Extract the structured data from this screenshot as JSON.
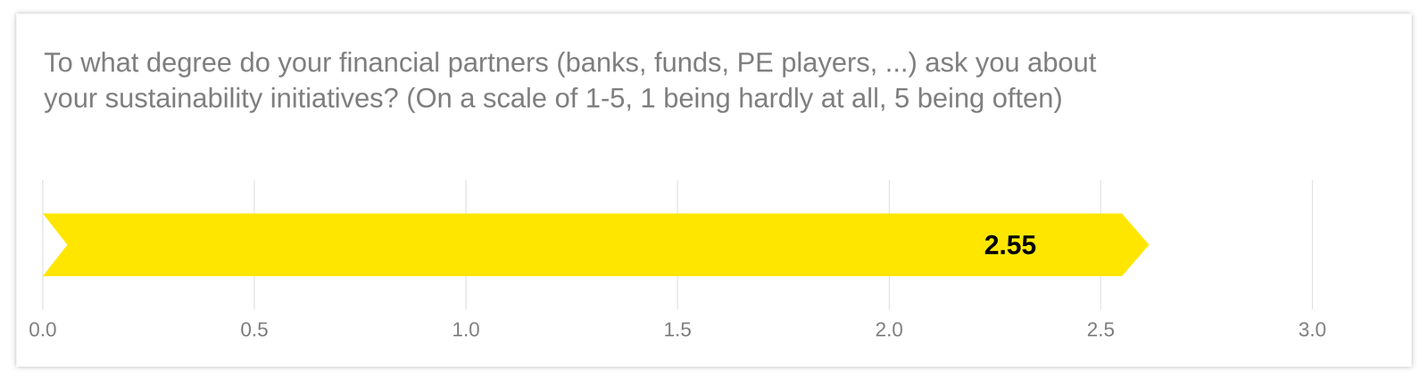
{
  "chart_data": {
    "type": "bar",
    "orientation": "horizontal",
    "title": "To what degree do your financial partners (banks, funds, PE players, ...) ask you about\nyour sustainability initiatives? (On a scale of 1-5, 1 being hardly at all, 5 being often)",
    "categories": [
      null
    ],
    "values": [
      2.55
    ],
    "color": "#ffe600",
    "xlim": [
      0,
      3
    ],
    "xticks": [
      {
        "value": 0,
        "label": "0.0"
      },
      0.5,
      {
        "value": 1,
        "label": "1.0"
      },
      1.5,
      {
        "value": 2,
        "label": "2.0"
      },
      2.5,
      {
        "value": 3,
        "label": "3.0"
      }
    ],
    "grid": true,
    "data_labels": true,
    "tick_labels": "x"
  }
}
